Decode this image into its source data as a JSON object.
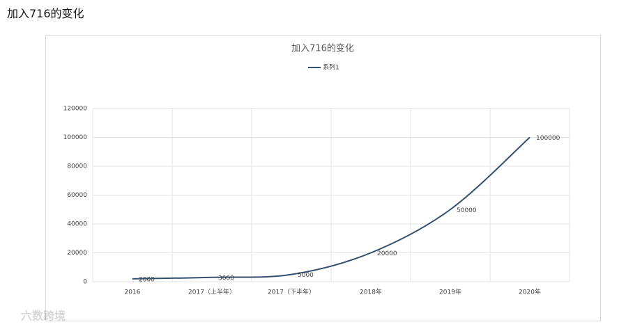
{
  "header": {
    "title": "加入716的变化"
  },
  "chart_data": {
    "type": "line",
    "title": "加入716的变化",
    "categories": [
      "2016",
      "2017（上半年）",
      "2017（下半年）",
      "2018年",
      "2019年",
      "2020年"
    ],
    "series": [
      {
        "name": "系列1",
        "color": "#34506f",
        "values": [
          2000,
          3000,
          5000,
          20000,
          50000,
          100000
        ]
      }
    ],
    "ylim": [
      0,
      120000
    ],
    "yticks": [
      0,
      20000,
      40000,
      60000,
      80000,
      100000,
      120000
    ],
    "grid": true,
    "smooth": true,
    "legend": "top",
    "data_labels": true
  },
  "watermark": "六数跨境"
}
